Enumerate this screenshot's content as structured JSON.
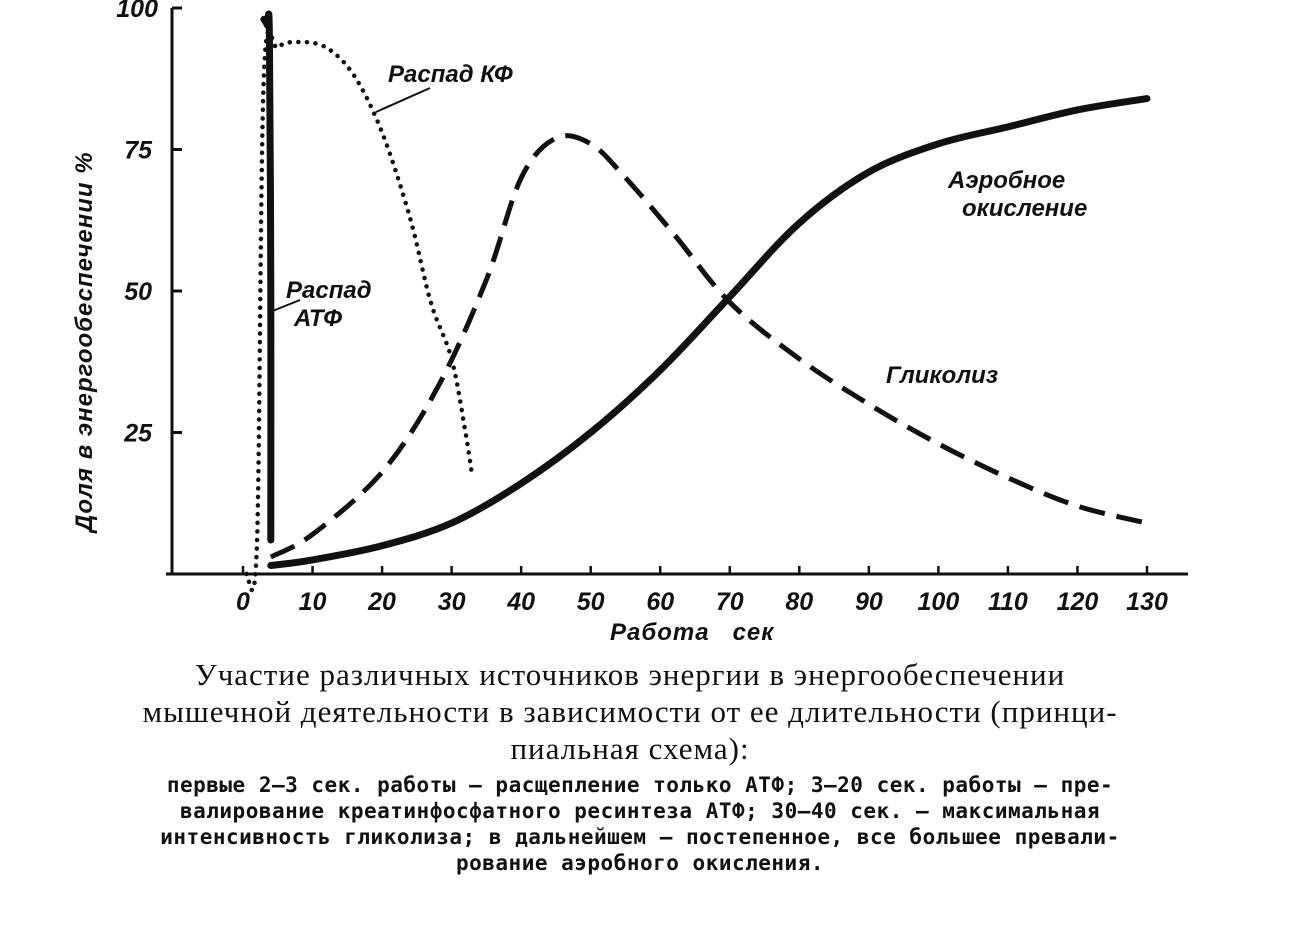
{
  "chart_data": {
    "type": "line",
    "ylabel": "Доля в энергообеспечении   %",
    "xlabel": "Работа   сек",
    "xlim": [
      -5,
      135
    ],
    "ylim": [
      0,
      100
    ],
    "x_ticks": [
      "0",
      "10",
      "20",
      "30",
      "40",
      "50",
      "60",
      "70",
      "80",
      "90",
      "100",
      "110",
      "120",
      "130"
    ],
    "x_tick_values": [
      0,
      10,
      20,
      30,
      40,
      50,
      60,
      70,
      80,
      90,
      100,
      110,
      120,
      130
    ],
    "y_ticks": [
      "25",
      "50",
      "75",
      "100"
    ],
    "y_tick_values": [
      25,
      50,
      75,
      100
    ],
    "series": [
      {
        "name": "Распад АТФ",
        "label_lines": [
          "Распад",
          "АТФ"
        ],
        "style": "thick",
        "x": [
          3,
          3.5,
          3.8,
          4,
          4
        ],
        "y": [
          98,
          97,
          95,
          50,
          6
        ]
      },
      {
        "name": "Распад КФ",
        "label_lines": [
          "Распад КФ"
        ],
        "style": "dotted",
        "x": [
          0.5,
          2,
          3,
          5,
          8,
          12,
          16,
          20,
          24,
          27,
          30,
          32,
          33
        ],
        "y": [
          0,
          5,
          88,
          93,
          94,
          93,
          88,
          78,
          63,
          48,
          38,
          25,
          17
        ]
      },
      {
        "name": "Гликолиз",
        "label_lines": [
          "Гликолиз"
        ],
        "style": "dashed",
        "x": [
          4,
          10,
          20,
          28,
          35,
          40,
          45,
          50,
          55,
          62,
          70,
          80,
          90,
          100,
          110,
          120,
          130
        ],
        "y": [
          3,
          7,
          18,
          33,
          52,
          70,
          77,
          76,
          70,
          60,
          48,
          38,
          30,
          23,
          17,
          12,
          9
        ]
      },
      {
        "name": "Аэробное окисление",
        "label_lines": [
          "Аэробное",
          "окисление"
        ],
        "style": "solid",
        "x": [
          4,
          10,
          20,
          30,
          40,
          50,
          60,
          70,
          80,
          90,
          100,
          110,
          120,
          130
        ],
        "y": [
          1.5,
          2.5,
          5,
          9,
          16,
          25,
          36,
          49,
          62,
          71,
          76,
          79,
          82,
          84
        ]
      }
    ]
  },
  "caption": {
    "title_lines": [
      "Участие различных источников энергии в энергообеспечении",
      "мышечной деятельности в зависимости от ее длительности (принци-",
      "пиальная схема):"
    ],
    "body_lines": [
      "первые 2—3 сек. работы — расщепление только АТФ; 3—20 сек. работы — пре-",
      "валирование креатинфосфатного ресинтеза АТФ; 30—40 сек. — максимальная",
      "интенсивность гликолиза; в дальнейшем — постепенное, все большее превали-",
      "рование аэробного окисления."
    ]
  }
}
